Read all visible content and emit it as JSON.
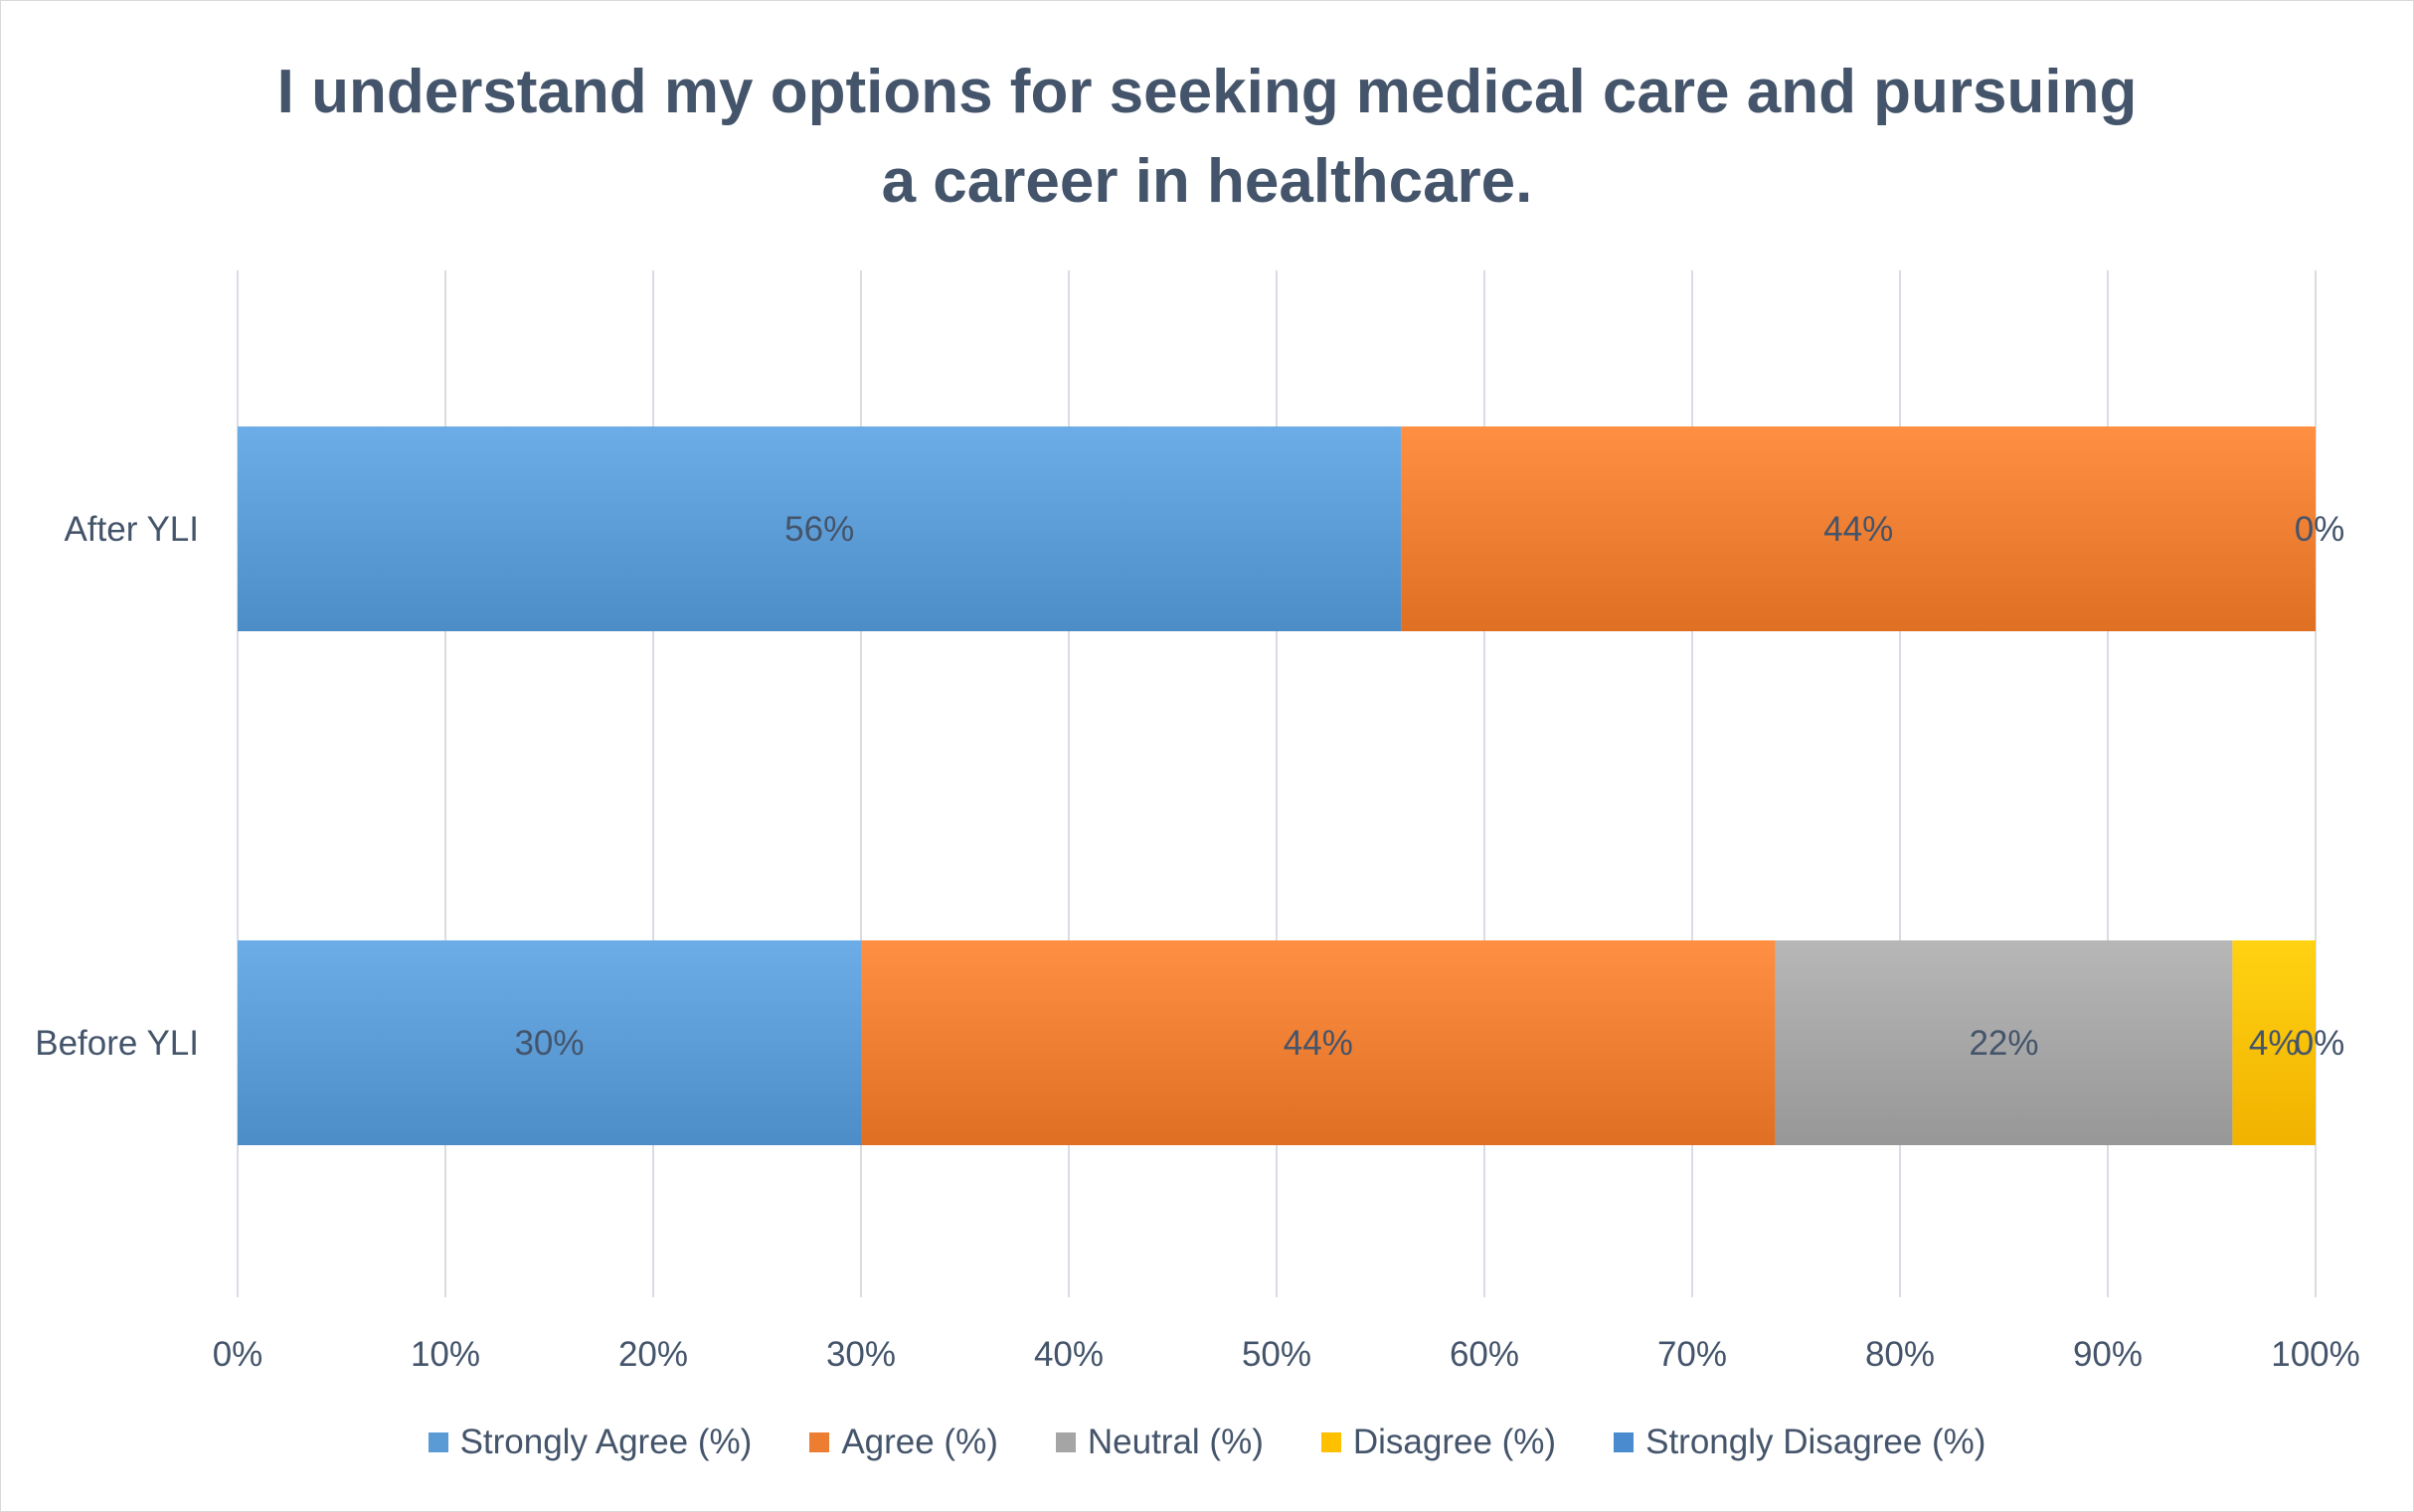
{
  "chart_data": {
    "type": "bar",
    "orientation": "horizontal",
    "stacked": "100%",
    "title": "I understand my options for seeking medical care and pursuing a career in healthcare.",
    "title_lines": [
      "I understand my options for seeking medical care and pursuing",
      "a career in healthcare."
    ],
    "categories": [
      "After YLI",
      "Before YLI"
    ],
    "series": [
      {
        "name": "Strongly Agree (%)",
        "values": [
          56,
          30
        ],
        "labels": [
          "56%",
          "30%"
        ],
        "color": "#5b9bd5"
      },
      {
        "name": "Agree (%)",
        "values": [
          44,
          44
        ],
        "labels": [
          "44%",
          "44%"
        ],
        "color": "#ed7d31"
      },
      {
        "name": "Neutral (%)",
        "values": [
          0,
          22
        ],
        "labels": [
          "",
          "22%"
        ],
        "color": "#a5a5a5"
      },
      {
        "name": "Disagree (%)",
        "values": [
          0,
          4
        ],
        "labels": [
          "",
          "4%"
        ],
        "color": "#ffc000"
      },
      {
        "name": "Strongly Disagree (%)",
        "values": [
          0,
          0
        ],
        "labels": [
          "0%",
          "0%"
        ],
        "color": "#4a8bd0"
      }
    ],
    "xlim": [
      0,
      100
    ],
    "xticks": [
      "0%",
      "10%",
      "20%",
      "30%",
      "40%",
      "50%",
      "60%",
      "70%",
      "80%",
      "90%",
      "100%"
    ],
    "grid": "vertical",
    "legend": "bottom"
  }
}
